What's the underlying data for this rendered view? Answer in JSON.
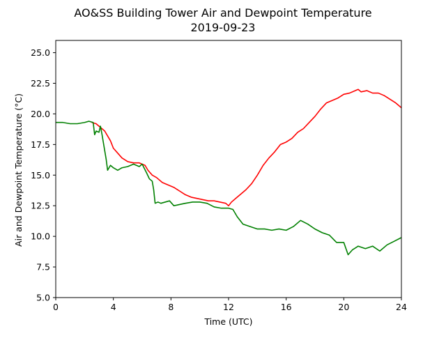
{
  "chart_data": {
    "type": "line",
    "title": "AO&SS Building Tower Air and Dewpoint Temperature",
    "subtitle": "2019-09-23",
    "xlabel": "Time (UTC)",
    "ylabel": "Air and Dewpoint Temperature (°C)",
    "xlim": [
      0,
      24
    ],
    "ylim": [
      5.0,
      26.0
    ],
    "xticks": [
      "0",
      "4",
      "8",
      "12",
      "16",
      "20",
      "24"
    ],
    "yticks": [
      "5.0",
      "7.5",
      "10.0",
      "12.5",
      "15.0",
      "17.5",
      "20.0",
      "22.5",
      "25.0"
    ],
    "grid": false,
    "series": [
      {
        "color": "#ff0000",
        "x": [
          2.5,
          2.8,
          3.0,
          3.2,
          3.4,
          3.6,
          3.8,
          4.0,
          4.3,
          4.6,
          5.0,
          5.4,
          5.8,
          6.2,
          6.4,
          6.7,
          7.0,
          7.4,
          7.8,
          8.2,
          8.6,
          9.0,
          9.4,
          9.8,
          10.2,
          10.6,
          11.0,
          11.4,
          11.8,
          12.0,
          12.2,
          12.5,
          12.8,
          13.2,
          13.6,
          14.0,
          14.4,
          14.8,
          15.2,
          15.6,
          16.0,
          16.4,
          16.8,
          17.2,
          17.6,
          18.0,
          18.4,
          18.8,
          19.2,
          19.6,
          20.0,
          20.4,
          20.8,
          21.0,
          21.2,
          21.6,
          22.0,
          22.4,
          22.8,
          23.2,
          23.6,
          24.0
        ],
        "y": [
          19.3,
          19.2,
          19.0,
          18.8,
          18.6,
          18.2,
          17.8,
          17.2,
          16.8,
          16.4,
          16.1,
          16.0,
          16.0,
          15.8,
          15.4,
          15.0,
          14.8,
          14.4,
          14.2,
          14.0,
          13.7,
          13.4,
          13.2,
          13.1,
          13.0,
          12.9,
          12.9,
          12.8,
          12.7,
          12.5,
          12.8,
          13.1,
          13.4,
          13.8,
          14.3,
          15.0,
          15.8,
          16.4,
          16.9,
          17.5,
          17.7,
          18.0,
          18.5,
          18.8,
          19.3,
          19.8,
          20.4,
          20.9,
          21.1,
          21.3,
          21.6,
          21.7,
          21.9,
          22.0,
          21.8,
          21.9,
          21.7,
          21.7,
          21.5,
          21.2,
          20.9,
          20.5
        ]
      },
      {
        "color": "#008000",
        "x": [
          0.0,
          0.5,
          1.0,
          1.5,
          2.0,
          2.3,
          2.6,
          2.7,
          2.8,
          3.0,
          3.1,
          3.2,
          3.3,
          3.5,
          3.6,
          3.8,
          4.0,
          4.3,
          4.6,
          5.0,
          5.4,
          5.8,
          6.0,
          6.3,
          6.5,
          6.7,
          6.8,
          6.9,
          7.1,
          7.3,
          7.6,
          7.9,
          8.2,
          8.6,
          9.0,
          9.5,
          10.0,
          10.5,
          11.0,
          11.5,
          12.0,
          12.3,
          12.6,
          13.0,
          13.5,
          14.0,
          14.5,
          15.0,
          15.5,
          16.0,
          16.5,
          17.0,
          17.5,
          18.0,
          18.5,
          19.0,
          19.5,
          20.0,
          20.3,
          20.6,
          21.0,
          21.5,
          22.0,
          22.5,
          23.0,
          23.5,
          24.0
        ],
        "y": [
          19.3,
          19.3,
          19.2,
          19.2,
          19.3,
          19.4,
          19.3,
          18.3,
          18.6,
          18.5,
          19.0,
          18.4,
          17.7,
          16.3,
          15.4,
          15.8,
          15.6,
          15.4,
          15.6,
          15.7,
          15.9,
          15.7,
          15.9,
          15.2,
          14.7,
          14.5,
          13.8,
          12.7,
          12.8,
          12.7,
          12.8,
          12.9,
          12.5,
          12.6,
          12.7,
          12.8,
          12.8,
          12.7,
          12.4,
          12.3,
          12.3,
          12.2,
          11.6,
          11.0,
          10.8,
          10.6,
          10.6,
          10.5,
          10.6,
          10.5,
          10.8,
          11.3,
          11.0,
          10.6,
          10.3,
          10.1,
          9.5,
          9.5,
          8.5,
          8.9,
          9.2,
          9.0,
          9.2,
          8.8,
          9.3,
          9.6,
          9.9
        ]
      }
    ]
  }
}
